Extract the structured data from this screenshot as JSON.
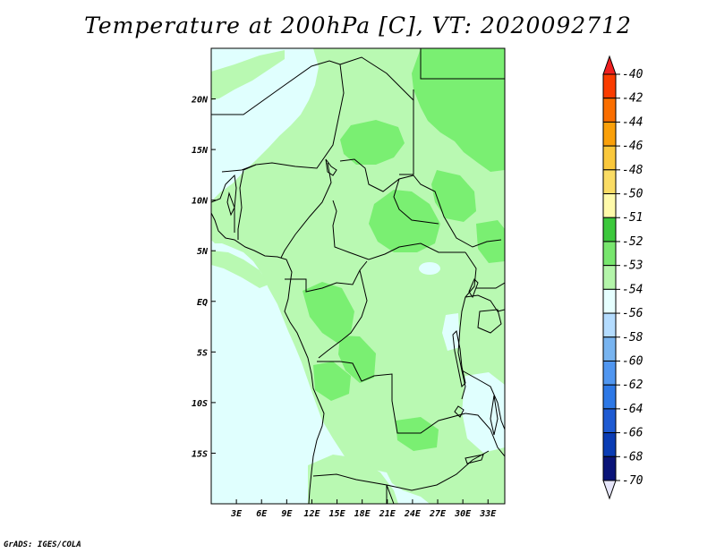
{
  "title": "Temperature at 200hPa [C], VT: 2020092712",
  "credit": "GrADS: IGES/COLA",
  "map": {
    "lon_range": [
      0,
      35
    ],
    "lat_range": [
      -20,
      25
    ],
    "lon_ticks": [
      "3E",
      "6E",
      "9E",
      "12E",
      "15E",
      "18E",
      "21E",
      "24E",
      "27E",
      "30E",
      "33E"
    ],
    "lat_ticks": [
      "20N",
      "15N",
      "10N",
      "5N",
      "EQ",
      "5S",
      "10S",
      "15S"
    ],
    "colors": {
      "m54": "#e0fffe",
      "m53": "#b9f9b2",
      "m52": "#7aef72",
      "m51": "#3cc83c"
    }
  },
  "colorbar": {
    "labels": [
      "-40",
      "-42",
      "-44",
      "-46",
      "-48",
      "-50",
      "-51",
      "-52",
      "-53",
      "-54",
      "-56",
      "-58",
      "-60",
      "-62",
      "-64",
      "-66",
      "-68",
      "-70"
    ],
    "colors": [
      "#f01f1f",
      "#fa3c00",
      "#fa6e00",
      "#faa00a",
      "#fac83c",
      "#fadc64",
      "#fffaaa",
      "#3cc83c",
      "#78e66e",
      "#b4f5aa",
      "#e6ffff",
      "#b4dcff",
      "#78b4f0",
      "#5096f0",
      "#2d78e6",
      "#1e5ad2",
      "#0a3cb4",
      "#0a1478",
      "#e6e6fa"
    ]
  }
}
